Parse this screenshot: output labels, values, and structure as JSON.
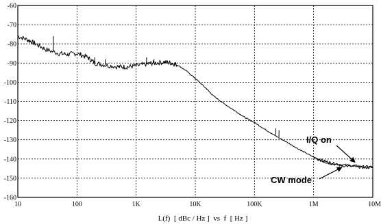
{
  "chart_data": {
    "type": "line",
    "xlabel": "L(f)  [ dBc / Hz ]  vs  f  [ Hz ]",
    "x_scale": "log",
    "xlim": [
      10,
      10000000
    ],
    "ylim": [
      -160,
      -60
    ],
    "x_ticks": [
      "10",
      "100",
      "1K",
      "10K",
      "100K",
      "1M",
      "10M"
    ],
    "y_ticks": [
      "-60",
      "-70",
      "-80",
      "-90",
      "-100",
      "-110",
      "-120",
      "-130",
      "-140",
      "-150",
      "-160"
    ],
    "grid": true,
    "annotations": [
      {
        "text": "I/Q on",
        "x": 5000000,
        "y": -142
      },
      {
        "text": "CW mode",
        "x": 3000000,
        "y": -144
      }
    ],
    "series": [
      {
        "x": [
          10,
          15,
          20,
          30,
          50,
          70,
          100,
          150,
          200,
          300,
          500,
          700,
          1000,
          1500,
          2000,
          3000,
          4000,
          5000,
          7000,
          10000,
          15000,
          20000,
          30000,
          50000,
          70000,
          100000,
          150000,
          200000,
          300000,
          500000,
          700000,
          1000000,
          1500000,
          2000000,
          3000000,
          5000000,
          7000000,
          10000000
        ],
        "y": [
          -76,
          -78,
          -80,
          -83,
          -85,
          -85.5,
          -85,
          -87,
          -90,
          -91,
          -92,
          -92,
          -91.5,
          -90.5,
          -90,
          -89.5,
          -90,
          -91,
          -94,
          -98,
          -103,
          -107,
          -111,
          -115.5,
          -118.5,
          -121,
          -124.5,
          -127,
          -130,
          -134,
          -136.5,
          -139,
          -141,
          -142,
          -143,
          -143.5,
          -144,
          -144
        ]
      },
      {
        "x": [
          1000000,
          1500000,
          2000000,
          3000000,
          5000000,
          7000000,
          10000000
        ],
        "y": [
          -139.5,
          -141.5,
          -142.5,
          -143.5,
          -144,
          -144.5,
          -144.5
        ]
      }
    ],
    "spurs": [
      {
        "x": 40,
        "y_top": -76,
        "y_base": -84
      },
      {
        "x": 200,
        "y_top": -87,
        "y_base": -90
      },
      {
        "x": 300,
        "y_top": -88,
        "y_base": -91
      },
      {
        "x": 1500,
        "y_top": -87,
        "y_base": -90.5
      },
      {
        "x": 2000,
        "y_top": -88,
        "y_base": -90
      },
      {
        "x": 230000,
        "y_top": -124,
        "y_base": -127.5
      },
      {
        "x": 260000,
        "y_top": -125,
        "y_base": -128.5
      }
    ]
  }
}
